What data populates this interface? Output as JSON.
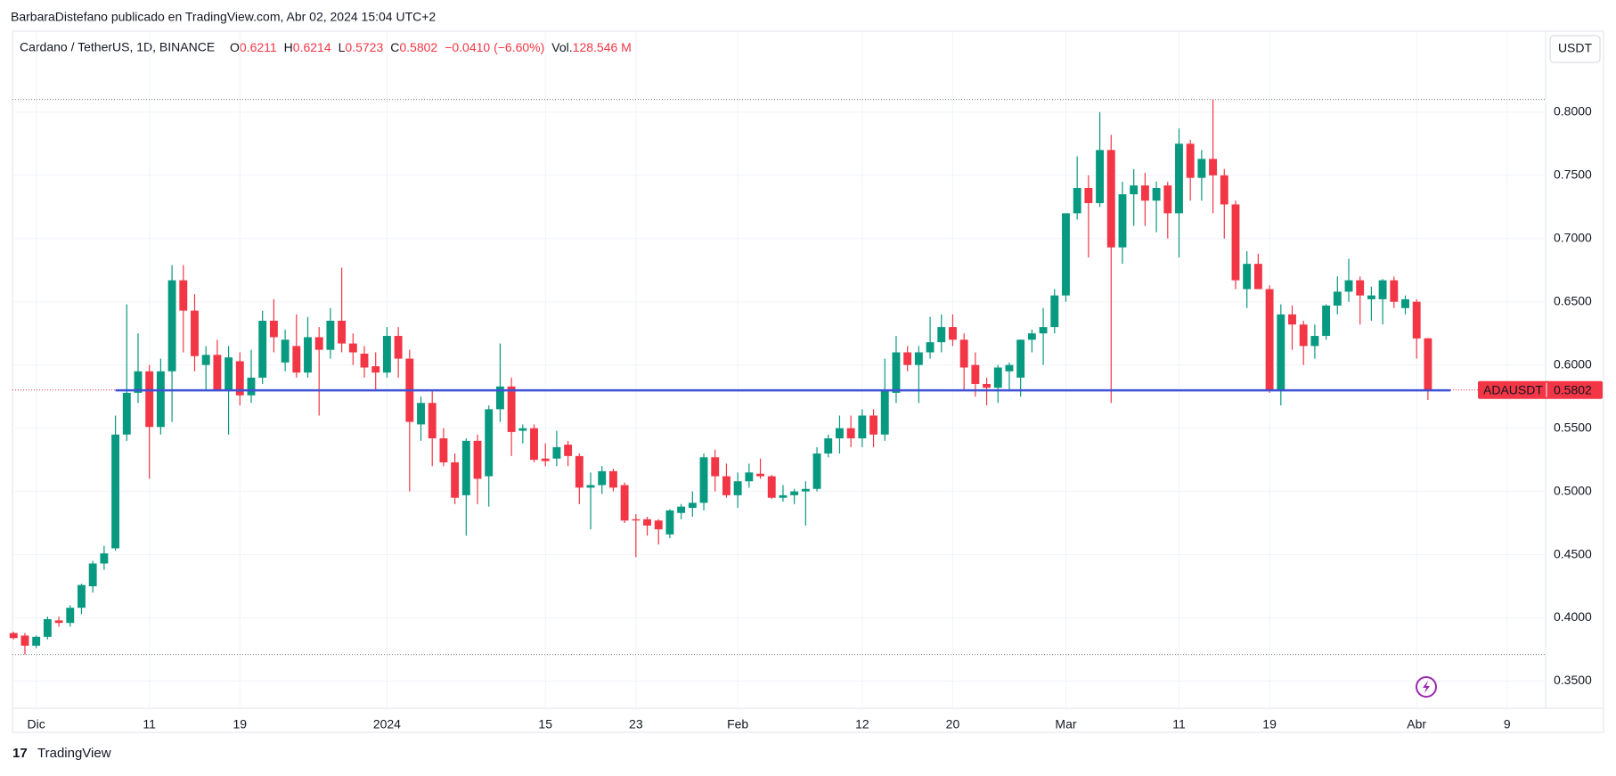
{
  "header": "BarbaraDistefano publicado en TradingView.com, Abr 02, 2024 15:04 UTC+2",
  "footer": "TradingView",
  "currency_button": "USDT",
  "legend": {
    "symbol": "Cardano / TetherUS, 1D, BINANCE",
    "open_key": "O",
    "open": "0.6211",
    "high_key": "H",
    "high": "0.6214",
    "low_key": "L",
    "low": "0.5723",
    "close_key": "C",
    "close": "0.5802",
    "change": "−0.0410 (−6.60%)",
    "volume_key": "Vol.",
    "volume": "128.546 M"
  },
  "chart_data": {
    "type": "candlestick",
    "up_color": "#089981",
    "down_color": "#f23645",
    "x": [
      -2,
      -1,
      0,
      1,
      2,
      3,
      4,
      5,
      6,
      7,
      8,
      9,
      10,
      11,
      12,
      13,
      14,
      15,
      16,
      17,
      18,
      19,
      20,
      21,
      22,
      23,
      24,
      25,
      26,
      27,
      28,
      29,
      30,
      31,
      32,
      33,
      34,
      35,
      36,
      37,
      38,
      39,
      40,
      41,
      42,
      43,
      44,
      45,
      46,
      47,
      48,
      49,
      50,
      51,
      52,
      53,
      54,
      55,
      56,
      57,
      58,
      59,
      60,
      61,
      62,
      63,
      64,
      65,
      66,
      67,
      68,
      69,
      70,
      71,
      72,
      73,
      74,
      75,
      76,
      77,
      78,
      79,
      80,
      81,
      82,
      83,
      84,
      85,
      86,
      87,
      88,
      89,
      90,
      91,
      92,
      93,
      94,
      95,
      96,
      97,
      98,
      99,
      100,
      101,
      102,
      103,
      104,
      105,
      106,
      107,
      108,
      109,
      110,
      111,
      112,
      113,
      114,
      115,
      116,
      117,
      118,
      119,
      120,
      121,
      122,
      123
    ],
    "ohlc": [
      [
        0.388,
        0.389,
        0.383,
        0.384
      ],
      [
        0.386,
        0.388,
        0.371,
        0.378
      ],
      [
        0.378,
        0.386,
        0.376,
        0.385
      ],
      [
        0.385,
        0.401,
        0.383,
        0.399
      ],
      [
        0.398,
        0.401,
        0.393,
        0.396
      ],
      [
        0.396,
        0.41,
        0.393,
        0.408
      ],
      [
        0.408,
        0.427,
        0.403,
        0.426
      ],
      [
        0.425,
        0.445,
        0.42,
        0.443
      ],
      [
        0.443,
        0.457,
        0.438,
        0.451
      ],
      [
        0.455,
        0.56,
        0.453,
        0.545
      ],
      [
        0.545,
        0.648,
        0.54,
        0.578
      ],
      [
        0.578,
        0.625,
        0.57,
        0.595
      ],
      [
        0.595,
        0.6,
        0.51,
        0.551
      ],
      [
        0.551,
        0.605,
        0.545,
        0.595
      ],
      [
        0.595,
        0.679,
        0.555,
        0.667
      ],
      [
        0.667,
        0.679,
        0.61,
        0.643
      ],
      [
        0.643,
        0.656,
        0.595,
        0.607
      ],
      [
        0.6,
        0.615,
        0.58,
        0.608
      ],
      [
        0.608,
        0.62,
        0.58,
        0.58
      ],
      [
        0.58,
        0.615,
        0.545,
        0.606
      ],
      [
        0.603,
        0.61,
        0.568,
        0.576
      ],
      [
        0.576,
        0.612,
        0.57,
        0.59
      ],
      [
        0.59,
        0.643,
        0.585,
        0.635
      ],
      [
        0.635,
        0.652,
        0.61,
        0.622
      ],
      [
        0.602,
        0.628,
        0.595,
        0.62
      ],
      [
        0.615,
        0.64,
        0.59,
        0.594
      ],
      [
        0.594,
        0.638,
        0.59,
        0.622
      ],
      [
        0.622,
        0.63,
        0.56,
        0.612
      ],
      [
        0.612,
        0.645,
        0.605,
        0.635
      ],
      [
        0.635,
        0.677,
        0.61,
        0.617
      ],
      [
        0.617,
        0.625,
        0.6,
        0.61
      ],
      [
        0.609,
        0.615,
        0.59,
        0.598
      ],
      [
        0.599,
        0.61,
        0.58,
        0.594
      ],
      [
        0.594,
        0.63,
        0.59,
        0.623
      ],
      [
        0.623,
        0.63,
        0.59,
        0.605
      ],
      [
        0.605,
        0.612,
        0.5,
        0.555
      ],
      [
        0.553,
        0.575,
        0.54,
        0.57
      ],
      [
        0.57,
        0.58,
        0.52,
        0.542
      ],
      [
        0.542,
        0.55,
        0.52,
        0.523
      ],
      [
        0.523,
        0.53,
        0.49,
        0.495
      ],
      [
        0.497,
        0.542,
        0.465,
        0.54
      ],
      [
        0.54,
        0.545,
        0.49,
        0.51
      ],
      [
        0.512,
        0.568,
        0.488,
        0.565
      ],
      [
        0.565,
        0.617,
        0.555,
        0.583
      ],
      [
        0.583,
        0.59,
        0.528,
        0.547
      ],
      [
        0.548,
        0.553,
        0.538,
        0.55
      ],
      [
        0.55,
        0.553,
        0.523,
        0.525
      ],
      [
        0.526,
        0.538,
        0.52,
        0.524
      ],
      [
        0.526,
        0.548,
        0.52,
        0.535
      ],
      [
        0.537,
        0.54,
        0.52,
        0.528
      ],
      [
        0.528,
        0.53,
        0.49,
        0.503
      ],
      [
        0.503,
        0.515,
        0.47,
        0.505
      ],
      [
        0.505,
        0.52,
        0.498,
        0.516
      ],
      [
        0.516,
        0.518,
        0.5,
        0.503
      ],
      [
        0.505,
        0.507,
        0.475,
        0.477
      ],
      [
        0.478,
        0.482,
        0.448,
        0.477
      ],
      [
        0.478,
        0.48,
        0.465,
        0.473
      ],
      [
        0.477,
        0.478,
        0.458,
        0.47
      ],
      [
        0.466,
        0.486,
        0.463,
        0.485
      ],
      [
        0.483,
        0.49,
        0.478,
        0.488
      ],
      [
        0.487,
        0.5,
        0.48,
        0.491
      ],
      [
        0.491,
        0.53,
        0.485,
        0.527
      ],
      [
        0.527,
        0.533,
        0.5,
        0.512
      ],
      [
        0.512,
        0.522,
        0.495,
        0.497
      ],
      [
        0.497,
        0.515,
        0.487,
        0.508
      ],
      [
        0.508,
        0.522,
        0.503,
        0.515
      ],
      [
        0.514,
        0.526,
        0.51,
        0.512
      ],
      [
        0.512,
        0.513,
        0.494,
        0.495
      ],
      [
        0.495,
        0.505,
        0.492,
        0.497
      ],
      [
        0.497,
        0.502,
        0.49,
        0.5
      ],
      [
        0.5,
        0.508,
        0.473,
        0.502
      ],
      [
        0.502,
        0.535,
        0.5,
        0.53
      ],
      [
        0.53,
        0.545,
        0.527,
        0.542
      ],
      [
        0.542,
        0.56,
        0.53,
        0.55
      ],
      [
        0.55,
        0.56,
        0.535,
        0.542
      ],
      [
        0.542,
        0.565,
        0.535,
        0.56
      ],
      [
        0.56,
        0.565,
        0.535,
        0.545
      ],
      [
        0.545,
        0.605,
        0.54,
        0.58
      ],
      [
        0.578,
        0.623,
        0.57,
        0.61
      ],
      [
        0.61,
        0.615,
        0.595,
        0.6
      ],
      [
        0.6,
        0.615,
        0.57,
        0.61
      ],
      [
        0.61,
        0.638,
        0.605,
        0.618
      ],
      [
        0.618,
        0.64,
        0.61,
        0.63
      ],
      [
        0.63,
        0.64,
        0.615,
        0.62
      ],
      [
        0.62,
        0.625,
        0.58,
        0.598
      ],
      [
        0.6,
        0.61,
        0.575,
        0.585
      ],
      [
        0.585,
        0.59,
        0.568,
        0.582
      ],
      [
        0.582,
        0.6,
        0.57,
        0.598
      ],
      [
        0.595,
        0.602,
        0.58,
        0.6
      ],
      [
        0.59,
        0.62,
        0.575,
        0.62
      ],
      [
        0.62,
        0.628,
        0.61,
        0.625
      ],
      [
        0.625,
        0.645,
        0.6,
        0.63
      ],
      [
        0.63,
        0.66,
        0.625,
        0.655
      ],
      [
        0.655,
        0.72,
        0.65,
        0.72
      ],
      [
        0.72,
        0.765,
        0.715,
        0.74
      ],
      [
        0.74,
        0.75,
        0.685,
        0.728
      ],
      [
        0.728,
        0.8,
        0.725,
        0.77
      ],
      [
        0.77,
        0.782,
        0.57,
        0.693
      ],
      [
        0.693,
        0.745,
        0.68,
        0.735
      ],
      [
        0.735,
        0.755,
        0.71,
        0.742
      ],
      [
        0.742,
        0.752,
        0.71,
        0.73
      ],
      [
        0.73,
        0.745,
        0.705,
        0.74
      ],
      [
        0.742,
        0.745,
        0.7,
        0.72
      ],
      [
        0.72,
        0.787,
        0.685,
        0.775
      ],
      [
        0.775,
        0.778,
        0.73,
        0.748
      ],
      [
        0.748,
        0.77,
        0.73,
        0.763
      ],
      [
        0.763,
        0.81,
        0.72,
        0.75
      ],
      [
        0.75,
        0.755,
        0.7,
        0.727
      ],
      [
        0.727,
        0.73,
        0.66,
        0.667
      ],
      [
        0.66,
        0.69,
        0.645,
        0.68
      ],
      [
        0.68,
        0.688,
        0.66,
        0.66
      ],
      [
        0.66,
        0.663,
        0.578,
        0.58
      ],
      [
        0.58,
        0.648,
        0.568,
        0.64
      ],
      [
        0.64,
        0.647,
        0.612,
        0.632
      ],
      [
        0.632,
        0.635,
        0.6,
        0.615
      ],
      [
        0.615,
        0.632,
        0.605,
        0.623
      ],
      [
        0.623,
        0.648,
        0.62,
        0.647
      ],
      [
        0.647,
        0.67,
        0.64,
        0.658
      ],
      [
        0.658,
        0.684,
        0.65,
        0.667
      ],
      [
        0.667,
        0.67,
        0.632,
        0.655
      ],
      [
        0.652,
        0.662,
        0.635,
        0.655
      ],
      [
        0.652,
        0.668,
        0.632,
        0.667
      ],
      [
        0.667,
        0.67,
        0.645,
        0.65
      ],
      [
        0.645,
        0.655,
        0.64,
        0.652
      ],
      [
        0.65,
        0.652,
        0.605,
        0.621
      ],
      [
        0.6211,
        0.6214,
        0.5723,
        0.5802
      ]
    ],
    "support_line": {
      "value": 0.58,
      "from": 7,
      "to": 125,
      "color": "#3f51d6"
    },
    "price_label": {
      "symbol": "ADAUSDT",
      "value": "0.5802"
    },
    "xlim": [
      -2.1,
      133.4
    ],
    "xticks": [
      {
        "value": 0,
        "label": "Dic"
      },
      {
        "value": 10,
        "label": "11"
      },
      {
        "value": 18,
        "label": "19"
      },
      {
        "value": 31,
        "label": "2024"
      },
      {
        "value": 45,
        "label": "15"
      },
      {
        "value": 53,
        "label": "23"
      },
      {
        "value": 62,
        "label": "Feb"
      },
      {
        "value": 73,
        "label": "12"
      },
      {
        "value": 81,
        "label": "20"
      },
      {
        "value": 91,
        "label": "Mar"
      },
      {
        "value": 101,
        "label": "11"
      },
      {
        "value": 109,
        "label": "19"
      },
      {
        "value": 122,
        "label": "Abr"
      },
      {
        "value": 130,
        "label": "9"
      }
    ],
    "ylim": [
      0.3285,
      0.864
    ],
    "yticks": [
      {
        "value": 0.35,
        "label": "0.3500"
      },
      {
        "value": 0.4,
        "label": "0.4000"
      },
      {
        "value": 0.45,
        "label": "0.4500"
      },
      {
        "value": 0.5,
        "label": "0.5000"
      },
      {
        "value": 0.55,
        "label": "0.5500"
      },
      {
        "value": 0.6,
        "label": "0.6000"
      },
      {
        "value": 0.65,
        "label": "0.6500"
      },
      {
        "value": 0.7,
        "label": "0.7000"
      },
      {
        "value": 0.75,
        "label": "0.7500"
      },
      {
        "value": 0.8,
        "label": "0.8000"
      }
    ],
    "grid": true
  }
}
